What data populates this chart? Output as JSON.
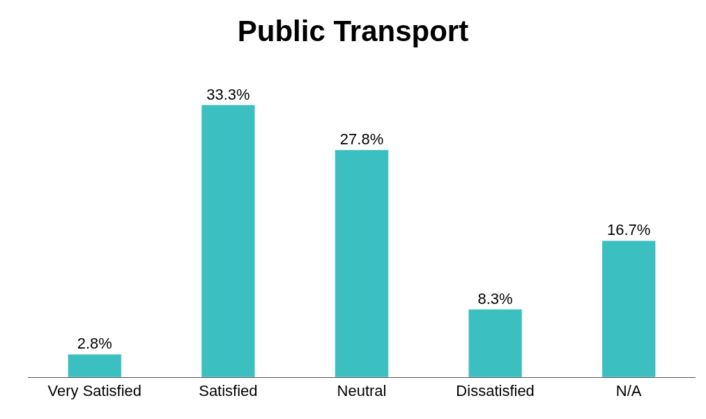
{
  "chart_data": {
    "type": "bar",
    "title": "Public Transport",
    "categories": [
      "Very Satisfied",
      "Satisfied",
      "Neutral",
      "Dissatisfied",
      "N/A"
    ],
    "values": [
      2.8,
      33.3,
      27.8,
      8.3,
      16.7
    ],
    "value_labels": [
      "2.8%",
      "33.3%",
      "27.8%",
      "8.3%",
      "16.7%"
    ],
    "color": "#3bbfc0"
  }
}
